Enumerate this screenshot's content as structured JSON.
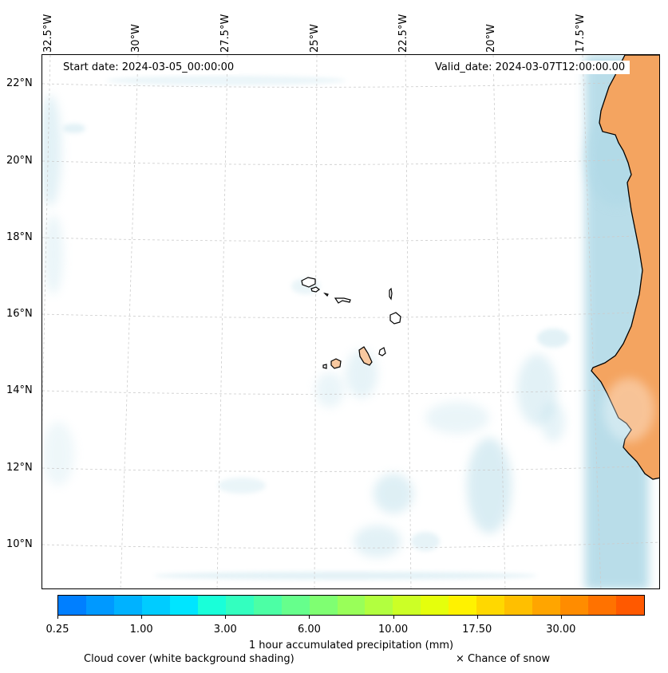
{
  "map": {
    "start_date": "Start date: 2024-03-05_00:00:00",
    "valid_date": "Valid_date: 2024-03-07T12:00:00.00",
    "lon_labels": [
      "32.5°W",
      "30°W",
      "27.5°W",
      "25°W",
      "22.5°W",
      "20°W",
      "17.5°W"
    ],
    "lat_labels": [
      "22°N",
      "20°N",
      "18°N",
      "16°N",
      "14°N",
      "12°N",
      "10°N"
    ],
    "land_color": "#f4a460",
    "cloud_color": "#add8e6",
    "grid_color": "#c8c8c8"
  },
  "colorbar": {
    "label": "1 hour accumulated precipitation (mm)",
    "tick_labels": [
      "0.25",
      "1.00",
      "3.00",
      "6.00",
      "10.00",
      "17.50",
      "30.00"
    ],
    "colors": [
      "#007fff",
      "#0099ff",
      "#00b2ff",
      "#00ccff",
      "#00e5ff",
      "#19ffd9",
      "#33ffbf",
      "#4cffa5",
      "#66ff8c",
      "#7fff72",
      "#99ff59",
      "#b2ff3f",
      "#ccff26",
      "#e5ff0c",
      "#fff200",
      "#ffd800",
      "#ffbf00",
      "#ffa500",
      "#ff8c00",
      "#ff7200",
      "#ff5900"
    ]
  },
  "legend": {
    "cloud_note": "Cloud cover (white background shading)",
    "snow_note": "× Chance of snow"
  }
}
